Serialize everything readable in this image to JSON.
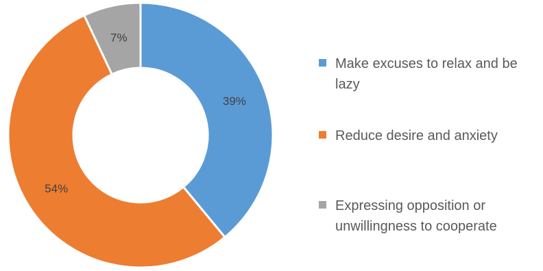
{
  "chart_data": {
    "type": "pie",
    "variant": "donut",
    "slices": [
      {
        "label": "Make excuses to relax and be lazy",
        "value": 39,
        "display": "39%",
        "color": "#5B9BD5"
      },
      {
        "label": "Reduce desire and anxiety",
        "value": 54,
        "display": "54%",
        "color": "#ED7D31"
      },
      {
        "label": "Expressing opposition or unwillingness to cooperate",
        "value": 7,
        "display": "7%",
        "color": "#A5A5A5"
      }
    ],
    "legend": "right"
  }
}
